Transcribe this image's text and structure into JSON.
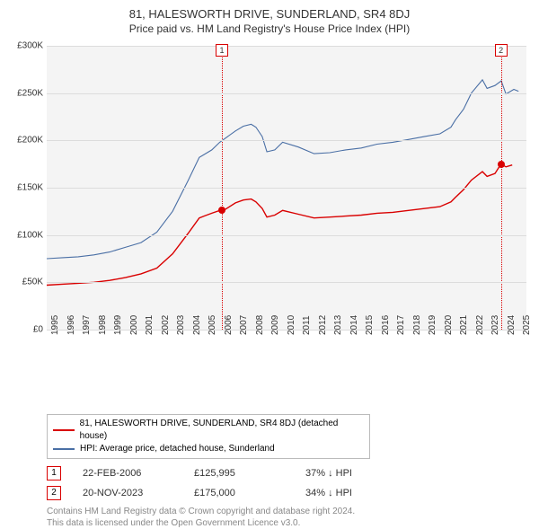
{
  "title": "81, HALESWORTH DRIVE, SUNDERLAND, SR4 8DJ",
  "subtitle": "Price paid vs. HM Land Registry's House Price Index (HPI)",
  "chart": {
    "type": "line",
    "background_color": "#f4f4f4",
    "grid_color": "#dcdcdc",
    "x_years": [
      1995,
      1996,
      1997,
      1998,
      1999,
      2000,
      2001,
      2002,
      2003,
      2004,
      2005,
      2006,
      2007,
      2008,
      2009,
      2010,
      2011,
      2012,
      2013,
      2014,
      2015,
      2016,
      2017,
      2018,
      2019,
      2020,
      2021,
      2022,
      2023,
      2024,
      2025
    ],
    "xlim": [
      1995,
      2025.5
    ],
    "ylim": [
      0,
      300000
    ],
    "ytick_step": 50000,
    "ytick_labels": [
      "£0",
      "£50K",
      "£100K",
      "£150K",
      "£200K",
      "£250K",
      "£300K"
    ],
    "series_red": {
      "color": "#d90000",
      "x": [
        1995,
        1996,
        1997,
        1998,
        1999,
        2000,
        2001,
        2002,
        2003,
        2004,
        2004.7,
        2005,
        2005.5,
        2006,
        2006.2,
        2007,
        2007.5,
        2008,
        2008.3,
        2008.7,
        2009,
        2009.5,
        2010,
        2011,
        2012,
        2013,
        2014,
        2015,
        2016,
        2017,
        2018,
        2019,
        2020,
        2020.7,
        2021,
        2021.5,
        2022,
        2022.7,
        2023,
        2023.5,
        2023.88,
        2024.2,
        2024.6
      ],
      "y": [
        47000,
        48000,
        49000,
        50000,
        52000,
        55000,
        59000,
        65000,
        80000,
        102000,
        118000,
        120000,
        123000,
        126000,
        125500,
        134000,
        137000,
        138000,
        135000,
        128000,
        119000,
        121000,
        126000,
        122000,
        118000,
        119000,
        120000,
        121000,
        123000,
        124000,
        126000,
        128000,
        130000,
        135000,
        140000,
        148000,
        158000,
        167000,
        162000,
        165000,
        175000,
        172000,
        174000
      ]
    },
    "series_blue": {
      "color": "#4a6fa5",
      "x": [
        1995,
        1996,
        1997,
        1998,
        1999,
        2000,
        2001,
        2002,
        2003,
        2004,
        2004.7,
        2005,
        2005.5,
        2006,
        2007,
        2007.5,
        2008,
        2008.3,
        2008.7,
        2009,
        2009.5,
        2010,
        2011,
        2012,
        2013,
        2014,
        2015,
        2016,
        2017,
        2018,
        2019,
        2020,
        2020.7,
        2021,
        2021.5,
        2022,
        2022.7,
        2023,
        2023.5,
        2023.9,
        2024.2,
        2024.7,
        2025
      ],
      "y": [
        75000,
        76000,
        77000,
        79000,
        82000,
        87000,
        92000,
        103000,
        125000,
        158000,
        182000,
        185000,
        190000,
        198000,
        210000,
        215000,
        217000,
        214000,
        204000,
        188000,
        190000,
        198000,
        193000,
        186000,
        187000,
        190000,
        192000,
        196000,
        198000,
        201000,
        204000,
        207000,
        214000,
        222000,
        233000,
        250000,
        264000,
        255000,
        258000,
        263000,
        249000,
        254000,
        252000
      ]
    },
    "markers": [
      {
        "num": "1",
        "x": 2006.14,
        "color": "#d90000",
        "dot_y": 125995
      },
      {
        "num": "2",
        "x": 2023.88,
        "color": "#d90000",
        "dot_y": 175000
      }
    ]
  },
  "legend": {
    "series1": "81, HALESWORTH DRIVE, SUNDERLAND, SR4 8DJ (detached house)",
    "series2": "HPI: Average price, detached house, Sunderland"
  },
  "annotations": [
    {
      "num": "1",
      "date": "22-FEB-2006",
      "price": "£125,995",
      "delta": "37% ↓ HPI",
      "color": "#d90000"
    },
    {
      "num": "2",
      "date": "20-NOV-2023",
      "price": "£175,000",
      "delta": "34% ↓ HPI",
      "color": "#d90000"
    }
  ],
  "footer": {
    "line1": "Contains HM Land Registry data © Crown copyright and database right 2024.",
    "line2": "This data is licensed under the Open Government Licence v3.0."
  }
}
